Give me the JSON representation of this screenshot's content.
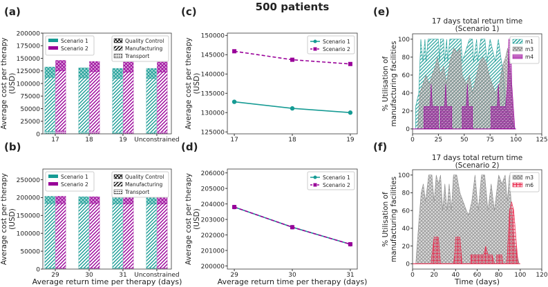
{
  "figure_title": "500 patients",
  "chart_data": [
    {
      "label": "(a)",
      "type": "bar",
      "stacked": true,
      "categories": [
        "17",
        "18",
        "19",
        "Unconstrained"
      ],
      "xlabel": "",
      "ylabel": [
        "Average cost per therapy",
        "(USD)"
      ],
      "ylim": [
        0,
        200000
      ],
      "yticks": [
        0,
        25000,
        50000,
        75000,
        100000,
        125000,
        150000,
        175000,
        200000
      ],
      "legend_series": [
        "Scenario 1",
        "Scenario 2"
      ],
      "legend_components": [
        "Quality Control",
        "Manufacturing",
        "Transport"
      ],
      "series": [
        {
          "name": "Scenario 1",
          "color": "#169b94",
          "components": {
            "Transport": [
              5000,
              3500,
              2500,
              2500
            ],
            "Manufacturing": [
              107000,
              107500,
              107500,
              107500
            ],
            "Quality Control": [
              20800,
              20100,
              20000,
              20000
            ]
          }
        },
        {
          "name": "Scenario 2",
          "color": "#990099",
          "components": {
            "Transport": [
              6000,
              4000,
              3000,
              3000
            ],
            "Manufacturing": [
              119000,
              119500,
              119500,
              119500
            ],
            "Quality Control": [
              20900,
              20200,
              20100,
              20100
            ]
          }
        }
      ]
    },
    {
      "label": "(b)",
      "type": "bar",
      "stacked": true,
      "categories": [
        "29",
        "30",
        "31",
        "Unconstrained"
      ],
      "xlabel": "Average return time per therapy (days)",
      "ylabel": [
        "Average cost per therapy",
        "(USD)"
      ],
      "ylim": [
        0,
        280000
      ],
      "yticks": [
        0,
        50000,
        100000,
        150000,
        200000,
        250000
      ],
      "legend_series": [
        "Scenario 1",
        "Scenario 2"
      ],
      "legend_components": [
        "Quality Control",
        "Manufacturing",
        "Transport"
      ],
      "series": [
        {
          "name": "Scenario 1",
          "color": "#169b94",
          "components": {
            "Transport": [
              3000,
              3000,
              3000,
              3000
            ],
            "Manufacturing": [
              180000,
              180000,
              179000,
              179000
            ],
            "Quality Control": [
              20800,
              19500,
              19400,
              19400
            ]
          }
        },
        {
          "name": "Scenario 2",
          "color": "#990099",
          "components": {
            "Transport": [
              3000,
              3000,
              3000,
              3000
            ],
            "Manufacturing": [
              180000,
              180000,
              179000,
              179000
            ],
            "Quality Control": [
              20800,
              19500,
              19400,
              19400
            ]
          }
        }
      ]
    },
    {
      "label": "(c)",
      "type": "line",
      "x": [
        17,
        18,
        19
      ],
      "xticks": [
        17,
        18,
        19
      ],
      "xlim": [
        16.88,
        19.12
      ],
      "xlabel": "",
      "ylabel": [
        "Average cost per therapy",
        "(USD)"
      ],
      "ylim": [
        124500,
        150600
      ],
      "yticks": [
        125000,
        130000,
        135000,
        140000,
        145000,
        150000
      ],
      "series": [
        {
          "name": "Scenario 1",
          "color": "#169b94",
          "marker": "circle",
          "dash": false,
          "values": [
            132800,
            131100,
            130000
          ]
        },
        {
          "name": "Scenario 2",
          "color": "#990099",
          "marker": "square",
          "dash": true,
          "values": [
            145900,
            143700,
            142600
          ]
        }
      ]
    },
    {
      "label": "(d)",
      "type": "line",
      "x": [
        29,
        30,
        31
      ],
      "xticks": [
        29,
        30,
        31
      ],
      "xlim": [
        28.88,
        31.12
      ],
      "xlabel": "Average return time per therapy (days)",
      "ylabel": [
        "Average cost per therapy",
        "(USD)"
      ],
      "ylim": [
        199800,
        206250
      ],
      "yticks": [
        200000,
        201000,
        202000,
        203000,
        204000,
        205000,
        206000
      ],
      "series": [
        {
          "name": "Scenario 1",
          "color": "#169b94",
          "marker": "circle",
          "dash": false,
          "values": [
            203800,
            202500,
            201400
          ]
        },
        {
          "name": "Scenario 2",
          "color": "#990099",
          "marker": "square",
          "dash": true,
          "values": [
            203800,
            202500,
            201400
          ]
        }
      ]
    },
    {
      "label": "(e)",
      "type": "area",
      "title": [
        "17 days total return time",
        "(Scenario 1)"
      ],
      "xlabel": "",
      "ylabel": [
        "% Utilisation of",
        "manufacturing facilities"
      ],
      "xlim": [
        0,
        125
      ],
      "xticks": [
        0,
        25,
        50,
        75,
        100,
        125
      ],
      "ylim": [
        -5.5,
        106
      ],
      "yticks": [
        0,
        20,
        40,
        60,
        80,
        100
      ],
      "series": [
        {
          "name": "m1",
          "color": "#169b94",
          "hatch": "diag",
          "points": [
            [
              0,
              0
            ],
            [
              3,
              0
            ],
            [
              3,
              25
            ],
            [
              6,
              40
            ],
            [
              8,
              100
            ],
            [
              10,
              75
            ],
            [
              12,
              100
            ],
            [
              13,
              75
            ],
            [
              15,
              100
            ],
            [
              25,
              100
            ],
            [
              26,
              75
            ],
            [
              27,
              100
            ],
            [
              30,
              100
            ],
            [
              31,
              75
            ],
            [
              33,
              100
            ],
            [
              34,
              75
            ],
            [
              36,
              100
            ],
            [
              47,
              100
            ],
            [
              48,
              75
            ],
            [
              55,
              100
            ],
            [
              58,
              100
            ],
            [
              59,
              75
            ],
            [
              62,
              100
            ],
            [
              63,
              75
            ],
            [
              66,
              100
            ],
            [
              70,
              100
            ],
            [
              72,
              75
            ],
            [
              75,
              100
            ],
            [
              80,
              75
            ],
            [
              83,
              100
            ],
            [
              86,
              75
            ],
            [
              88,
              60
            ],
            [
              90,
              25
            ],
            [
              99,
              0
            ]
          ]
        },
        {
          "name": "m3",
          "color": "#8a8a8a",
          "hatch": "cross",
          "points": [
            [
              0,
              0
            ],
            [
              5,
              0
            ],
            [
              7,
              40
            ],
            [
              10,
              50
            ],
            [
              13,
              60
            ],
            [
              16,
              50
            ],
            [
              19,
              60
            ],
            [
              22,
              70
            ],
            [
              24,
              80
            ],
            [
              27,
              60
            ],
            [
              30,
              70
            ],
            [
              33,
              50
            ],
            [
              36,
              75
            ],
            [
              40,
              90
            ],
            [
              43,
              85
            ],
            [
              46,
              90
            ],
            [
              48,
              60
            ],
            [
              52,
              50
            ],
            [
              55,
              60
            ],
            [
              58,
              40
            ],
            [
              62,
              60
            ],
            [
              65,
              75
            ],
            [
              68,
              80
            ],
            [
              71,
              75
            ],
            [
              74,
              60
            ],
            [
              77,
              50
            ],
            [
              80,
              40
            ],
            [
              84,
              50
            ],
            [
              87,
              70
            ],
            [
              90,
              80
            ],
            [
              92,
              90
            ],
            [
              95,
              60
            ],
            [
              98,
              0
            ]
          ]
        },
        {
          "name": "m4",
          "color": "#990099",
          "hatch": "hline",
          "points": [
            [
              0,
              0
            ],
            [
              11,
              0
            ],
            [
              11,
              25
            ],
            [
              17,
              25
            ],
            [
              18,
              50
            ],
            [
              19,
              25
            ],
            [
              25,
              25
            ],
            [
              25,
              0
            ],
            [
              27,
              0
            ],
            [
              27,
              25
            ],
            [
              31,
              25
            ],
            [
              32,
              50
            ],
            [
              33,
              25
            ],
            [
              38,
              25
            ],
            [
              38,
              0
            ],
            [
              48,
              0
            ],
            [
              48,
              25
            ],
            [
              52,
              25
            ],
            [
              53,
              50
            ],
            [
              54,
              25
            ],
            [
              58,
              25
            ],
            [
              58,
              0
            ],
            [
              76,
              0
            ],
            [
              76,
              25
            ],
            [
              82,
              25
            ],
            [
              83,
              50
            ],
            [
              84,
              25
            ],
            [
              90,
              25
            ],
            [
              92,
              50
            ],
            [
              93,
              100
            ],
            [
              95,
              100
            ],
            [
              96,
              50
            ],
            [
              99,
              0
            ]
          ]
        }
      ]
    },
    {
      "label": "(f)",
      "type": "area",
      "title": [
        "17 days total return time",
        "(Scenario 2)"
      ],
      "xlabel": "Time (days)",
      "ylabel": [
        "% Utilisation of",
        "manufacturing facilities"
      ],
      "xlim": [
        0,
        120
      ],
      "xticks": [
        0,
        20,
        40,
        60,
        80,
        100,
        120
      ],
      "ylim": [
        -6,
        106
      ],
      "yticks": [
        0,
        20,
        40,
        60,
        80,
        100
      ],
      "series": [
        {
          "name": "m3",
          "color": "#8a8a8a",
          "hatch": "cross",
          "points": [
            [
              0,
              0
            ],
            [
              3,
              0
            ],
            [
              6,
              50
            ],
            [
              8,
              80
            ],
            [
              10,
              90
            ],
            [
              12,
              70
            ],
            [
              15,
              100
            ],
            [
              18,
              100
            ],
            [
              20,
              70
            ],
            [
              22,
              100
            ],
            [
              24,
              90
            ],
            [
              26,
              100
            ],
            [
              28,
              60
            ],
            [
              30,
              90
            ],
            [
              32,
              60
            ],
            [
              34,
              90
            ],
            [
              36,
              60
            ],
            [
              38,
              100
            ],
            [
              41,
              100
            ],
            [
              44,
              80
            ],
            [
              47,
              70
            ],
            [
              50,
              60
            ],
            [
              52,
              55
            ],
            [
              55,
              70
            ],
            [
              58,
              100
            ],
            [
              61,
              60
            ],
            [
              64,
              100
            ],
            [
              67,
              100
            ],
            [
              70,
              60
            ],
            [
              73,
              90
            ],
            [
              76,
              60
            ],
            [
              80,
              100
            ],
            [
              83,
              90
            ],
            [
              86,
              100
            ],
            [
              88,
              70
            ],
            [
              90,
              100
            ],
            [
              92,
              60
            ],
            [
              95,
              20
            ],
            [
              99,
              0
            ]
          ]
        },
        {
          "name": "m6",
          "color": "#e8264a",
          "hatch": "plus",
          "points": [
            [
              0,
              0
            ],
            [
              17,
              0
            ],
            [
              18,
              10
            ],
            [
              20,
              30
            ],
            [
              24,
              30
            ],
            [
              26,
              0
            ],
            [
              38,
              0
            ],
            [
              39,
              10
            ],
            [
              40,
              30
            ],
            [
              44,
              30
            ],
            [
              46,
              0
            ],
            [
              54,
              0
            ],
            [
              54,
              10
            ],
            [
              66,
              10
            ],
            [
              68,
              20
            ],
            [
              70,
              10
            ],
            [
              74,
              10
            ],
            [
              76,
              0
            ],
            [
              78,
              0
            ],
            [
              78,
              10
            ],
            [
              83,
              10
            ],
            [
              84,
              0
            ],
            [
              87,
              0
            ],
            [
              88,
              10
            ],
            [
              90,
              60
            ],
            [
              92,
              70
            ],
            [
              94,
              60
            ],
            [
              96,
              30
            ],
            [
              98,
              0
            ]
          ]
        }
      ]
    }
  ]
}
